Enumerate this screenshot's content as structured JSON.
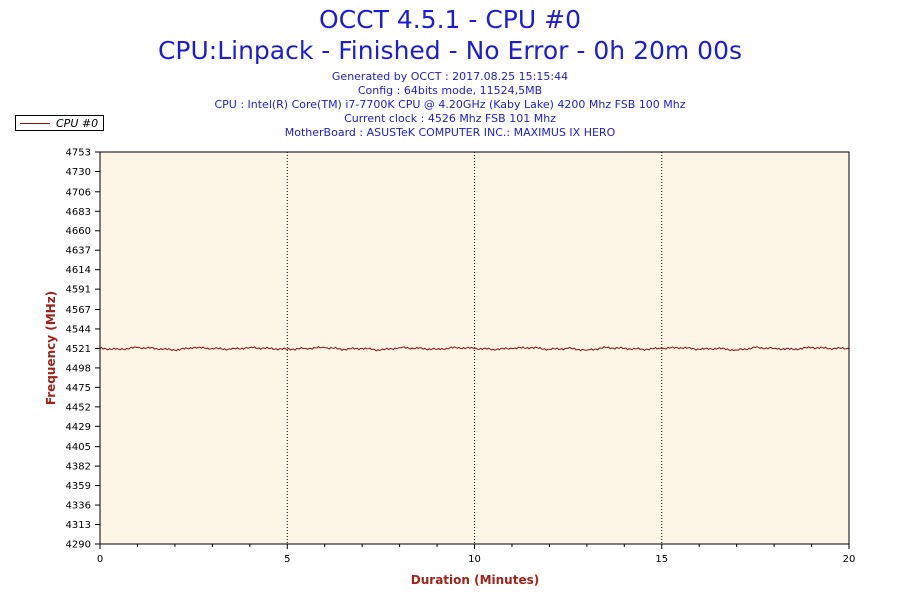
{
  "header": {
    "title": "OCCT 4.5.1 - CPU #0",
    "subtitle": "CPU:Linpack - Finished - No Error - 0h 20m 00s",
    "info_lines": [
      "Generated by OCCT : 2017.08.25 15:15:44",
      "Config : 64bits mode, 11524,5MB",
      "CPU : Intel(R) Core(TM) i7-7700K CPU @ 4.20GHz (Kaby Lake) 4200 Mhz FSB 100 Mhz",
      "Current clock : 4526 Mhz FSB 101 Mhz",
      "MotherBoard : ASUSTeK COMPUTER INC.: MAXIMUS IX HERO"
    ]
  },
  "colors": {
    "title": "#1c1cd9",
    "series": "#8b1111",
    "plot_bg": "#fdf5e6",
    "axis_title": "#a3231a"
  },
  "chart_data": {
    "type": "line",
    "xlabel": "Duration (Minutes)",
    "ylabel": "Frequency (MHz)",
    "xlim": [
      0,
      20
    ],
    "ylim": [
      4290,
      4753
    ],
    "x_ticks": [
      0,
      5,
      10,
      15,
      20
    ],
    "y_ticks": [
      4290,
      4313,
      4336,
      4359,
      4382,
      4405,
      4429,
      4452,
      4475,
      4498,
      4521,
      4544,
      4567,
      4591,
      4614,
      4637,
      4660,
      4683,
      4706,
      4730,
      4753
    ],
    "grid": "vertical-dotted",
    "legend_position": "top-left",
    "series": [
      {
        "name": "CPU #0",
        "x": [
          0,
          0.5,
          1,
          1.5,
          2,
          2.5,
          3,
          3.5,
          4,
          4.5,
          5,
          5.5,
          6,
          6.5,
          7,
          7.5,
          8,
          8.5,
          9,
          9.5,
          10,
          10.5,
          11,
          11.5,
          12,
          12.5,
          13,
          13.5,
          14,
          14.5,
          15,
          15.5,
          16,
          16.5,
          17,
          17.5,
          18,
          18.5,
          19,
          19.5,
          20
        ],
        "values": [
          4521,
          4520,
          4522,
          4521,
          4519,
          4522,
          4521,
          4520,
          4522,
          4521,
          4520,
          4521,
          4522,
          4520,
          4521,
          4519,
          4522,
          4521,
          4520,
          4522,
          4521,
          4520,
          4521,
          4522,
          4520,
          4521,
          4519,
          4522,
          4521,
          4520,
          4521,
          4522,
          4520,
          4521,
          4519,
          4522,
          4521,
          4520,
          4522,
          4521,
          4521
        ]
      }
    ]
  }
}
